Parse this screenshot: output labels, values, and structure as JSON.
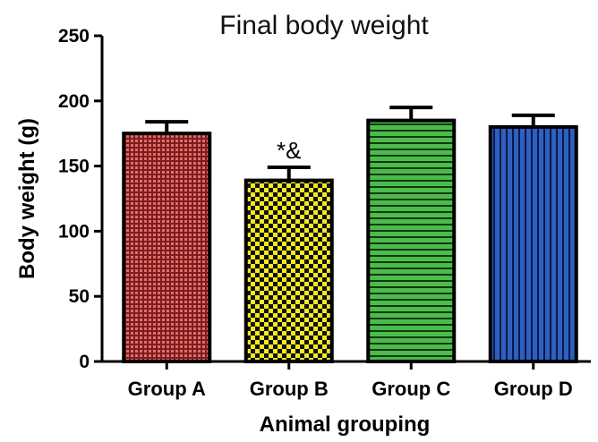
{
  "chart_data": {
    "type": "bar",
    "title": "Final body weight",
    "xlabel": "Animal grouping",
    "ylabel": "Body weight (g)",
    "ylim": [
      0,
      250
    ],
    "yticks": [
      0,
      50,
      100,
      150,
      200,
      250
    ],
    "categories": [
      "Group A",
      "Group B",
      "Group C",
      "Group D"
    ],
    "values": [
      175,
      139,
      185,
      180
    ],
    "errors": [
      9,
      10,
      10,
      9
    ],
    "annotations": [
      "",
      "*&",
      "",
      ""
    ],
    "colors": [
      "#d94b4b",
      "#f2e61c",
      "#4cbb4c",
      "#2f5fbf"
    ],
    "patterns": [
      "dots",
      "checker",
      "horizontal-stripes",
      "vertical-stripes"
    ],
    "grid": false
  }
}
